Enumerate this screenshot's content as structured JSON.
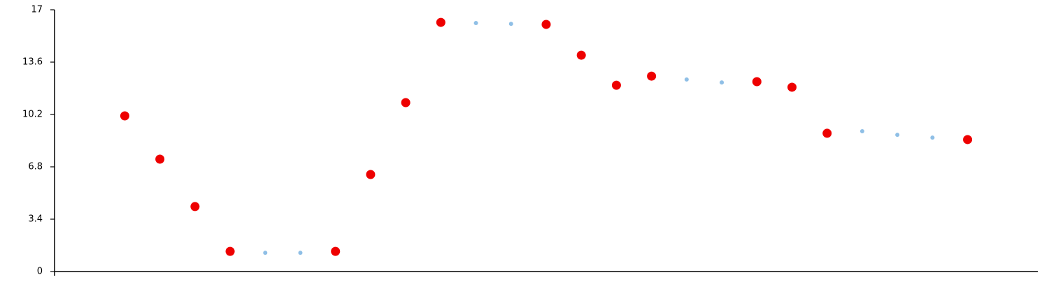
{
  "chart_data": {
    "type": "scatter",
    "x": [
      2,
      3,
      4,
      5,
      6,
      7,
      8,
      9,
      10,
      11,
      12,
      13,
      14,
      15,
      16,
      17,
      18,
      19,
      20,
      21,
      22,
      23,
      24,
      25,
      26
    ],
    "series": [
      {
        "color": "#ee0000",
        "marker_size": 6.5,
        "values": [
          10.11,
          7.3,
          4.22,
          1.31,
          null,
          null,
          1.31,
          6.3,
          10.97,
          16.18,
          null,
          null,
          16.05,
          14.05,
          12.1,
          12.69,
          null,
          null,
          12.33,
          11.97,
          8.98,
          null,
          null,
          null,
          8.57
        ]
      },
      {
        "color": "#8fbfe6",
        "marker_size": 3,
        "values": [
          null,
          null,
          null,
          null,
          1.22,
          1.22,
          null,
          null,
          null,
          null,
          16.14,
          16.09,
          null,
          null,
          null,
          null,
          12.47,
          12.28,
          null,
          null,
          null,
          9.11,
          8.88,
          8.7,
          null
        ]
      }
    ],
    "xlim": [
      0,
      28
    ],
    "ylim": [
      0,
      17
    ],
    "yticks": [
      0,
      3.4,
      6.8,
      10.2,
      13.6,
      17
    ]
  }
}
